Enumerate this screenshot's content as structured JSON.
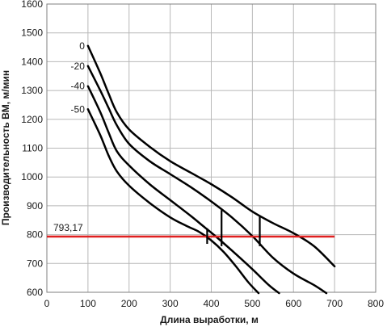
{
  "chart_data": {
    "type": "line",
    "title": "",
    "xlabel": "Длина выработки, м",
    "ylabel": "Производительность ВМ, м/мин",
    "xlim": [
      0,
      800
    ],
    "ylim": [
      600,
      1600
    ],
    "x_ticks": [
      0,
      100,
      200,
      300,
      400,
      500,
      600,
      700,
      800
    ],
    "y_ticks": [
      600,
      700,
      800,
      900,
      1000,
      1100,
      1200,
      1300,
      1400,
      1500,
      1600
    ],
    "x_tick_labels": [
      "0",
      "100",
      "200",
      "300",
      "400",
      "500",
      "600",
      "700",
      "800"
    ],
    "y_tick_labels": [
      "600",
      "700",
      "800",
      "900",
      "1000",
      "1100",
      "1200",
      "1300",
      "1400",
      "1500",
      "1600"
    ],
    "grid": "both",
    "legend": "none",
    "series": [
      {
        "name": "0",
        "points": [
          [
            100,
            1455
          ],
          [
            130,
            1360
          ],
          [
            150,
            1290
          ],
          [
            170,
            1225
          ],
          [
            200,
            1165
          ],
          [
            250,
            1105
          ],
          [
            300,
            1055
          ],
          [
            350,
            1015
          ],
          [
            400,
            975
          ],
          [
            450,
            930
          ],
          [
            500,
            880
          ],
          [
            550,
            840
          ],
          [
            600,
            805
          ],
          [
            650,
            760
          ],
          [
            700,
            690
          ]
        ]
      },
      {
        "name": "-20",
        "points": [
          [
            100,
            1385
          ],
          [
            130,
            1300
          ],
          [
            150,
            1240
          ],
          [
            170,
            1180
          ],
          [
            200,
            1115
          ],
          [
            250,
            1055
          ],
          [
            300,
            1010
          ],
          [
            350,
            965
          ],
          [
            400,
            915
          ],
          [
            450,
            860
          ],
          [
            500,
            795
          ],
          [
            550,
            720
          ],
          [
            600,
            665
          ],
          [
            650,
            625
          ],
          [
            680,
            597
          ]
        ]
      },
      {
        "name": "-40",
        "points": [
          [
            100,
            1315
          ],
          [
            130,
            1225
          ],
          [
            150,
            1155
          ],
          [
            170,
            1090
          ],
          [
            200,
            1040
          ],
          [
            250,
            975
          ],
          [
            300,
            920
          ],
          [
            350,
            865
          ],
          [
            380,
            830
          ],
          [
            410,
            795
          ],
          [
            450,
            745
          ],
          [
            500,
            680
          ],
          [
            540,
            625
          ],
          [
            565,
            597
          ]
        ]
      },
      {
        "name": "-50",
        "points": [
          [
            100,
            1235
          ],
          [
            130,
            1145
          ],
          [
            150,
            1075
          ],
          [
            170,
            1020
          ],
          [
            200,
            970
          ],
          [
            250,
            910
          ],
          [
            300,
            860
          ],
          [
            340,
            830
          ],
          [
            370,
            810
          ],
          [
            400,
            780
          ],
          [
            430,
            740
          ],
          [
            460,
            690
          ],
          [
            490,
            635
          ],
          [
            515,
            597
          ]
        ]
      }
    ],
    "reference_line": {
      "y": 793.17,
      "label": "793,17",
      "color": "#e02020",
      "x_range": [
        0,
        700
      ]
    },
    "markers": [
      {
        "x": 390,
        "y_range": [
          768,
          822
        ]
      },
      {
        "x": 425,
        "y_range": [
          760,
          885
        ]
      },
      {
        "x": 518,
        "y_range": [
          760,
          865
        ]
      }
    ],
    "series_labels": [
      {
        "text": "0",
        "series": "0"
      },
      {
        "text": "-20",
        "series": "-20"
      },
      {
        "text": "-40",
        "series": "-40"
      },
      {
        "text": "-50",
        "series": "-50"
      }
    ],
    "colors": {
      "series": "#000000",
      "grid": "#b8b8b8",
      "axis": "#7f7f7f",
      "reference": "#e02020"
    }
  }
}
